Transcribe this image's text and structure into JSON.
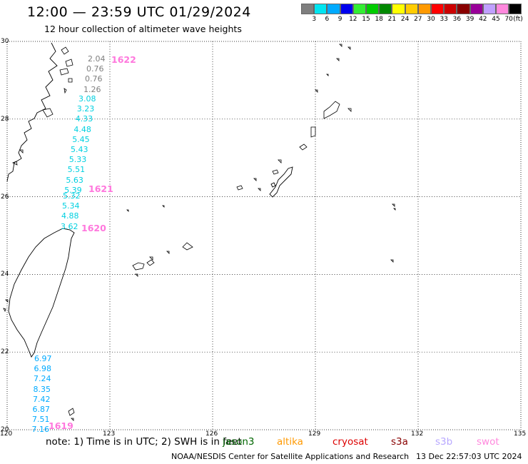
{
  "title": "12:00 — 23:59 UTC 01/29/2024",
  "subtitle": "12 hour collection of altimeter wave heights",
  "colorbar": {
    "colors": [
      "#7f7f7f",
      "#00e5f0",
      "#00aaff",
      "#0000ee",
      "#33ee33",
      "#00cc00",
      "#008800",
      "#ffff00",
      "#ffcc00",
      "#ff9900",
      "#ff0000",
      "#cc0000",
      "#880000",
      "#990099",
      "#c0a0ff",
      "#ff88dd",
      "#000000"
    ],
    "labels": [
      "3",
      "6",
      "9",
      "12",
      "15",
      "18",
      "21",
      "24",
      "27",
      "30",
      "33",
      "36",
      "39",
      "42",
      "45",
      "70"
    ],
    "unit": "(ft)"
  },
  "axes": {
    "lat_labels": [
      "30",
      "28",
      "26",
      "24",
      "22",
      "20"
    ],
    "lon_labels": [
      "120",
      "123",
      "126",
      "129",
      "132",
      "135"
    ]
  },
  "tracks": [
    {
      "pass": "1622",
      "color": "#7f7f7f",
      "values": [
        "2.04",
        "0.76",
        "0.76",
        "1.26"
      ]
    },
    {
      "pass": "1621",
      "color": "#00d0e0",
      "values": [
        "3.08",
        "3.23",
        "4.33",
        "4.48",
        "5.45",
        "5.43",
        "5.33",
        "5.51",
        "5.63",
        "5.39"
      ]
    },
    {
      "pass": "1620",
      "color": "#00d0e0",
      "values": [
        "5.32",
        "5.34",
        "4.88",
        "3.62"
      ]
    },
    {
      "pass": "1619",
      "color": "#00aaff",
      "values": [
        "6.97",
        "6.98",
        "7.24",
        "8.35",
        "7.42",
        "6.87",
        "7.51",
        "7.16"
      ]
    }
  ],
  "legend": {
    "note": "note:  1) Time is in UTC; 2) SWH is in feet",
    "satellites": [
      {
        "name": "jason3",
        "color": "#006600"
      },
      {
        "name": "altika",
        "color": "#ff9900"
      },
      {
        "name": "cryosat",
        "color": "#dd0000"
      },
      {
        "name": "s3a",
        "color": "#880000"
      },
      {
        "name": "s3b",
        "color": "#b8a8ff"
      },
      {
        "name": "swot",
        "color": "#ff88dd"
      }
    ]
  },
  "credit": "NOAA/NESDIS Center for Satellite Applications and Research",
  "timestamp": "13 Dec 22:57:03 UTC 2024"
}
